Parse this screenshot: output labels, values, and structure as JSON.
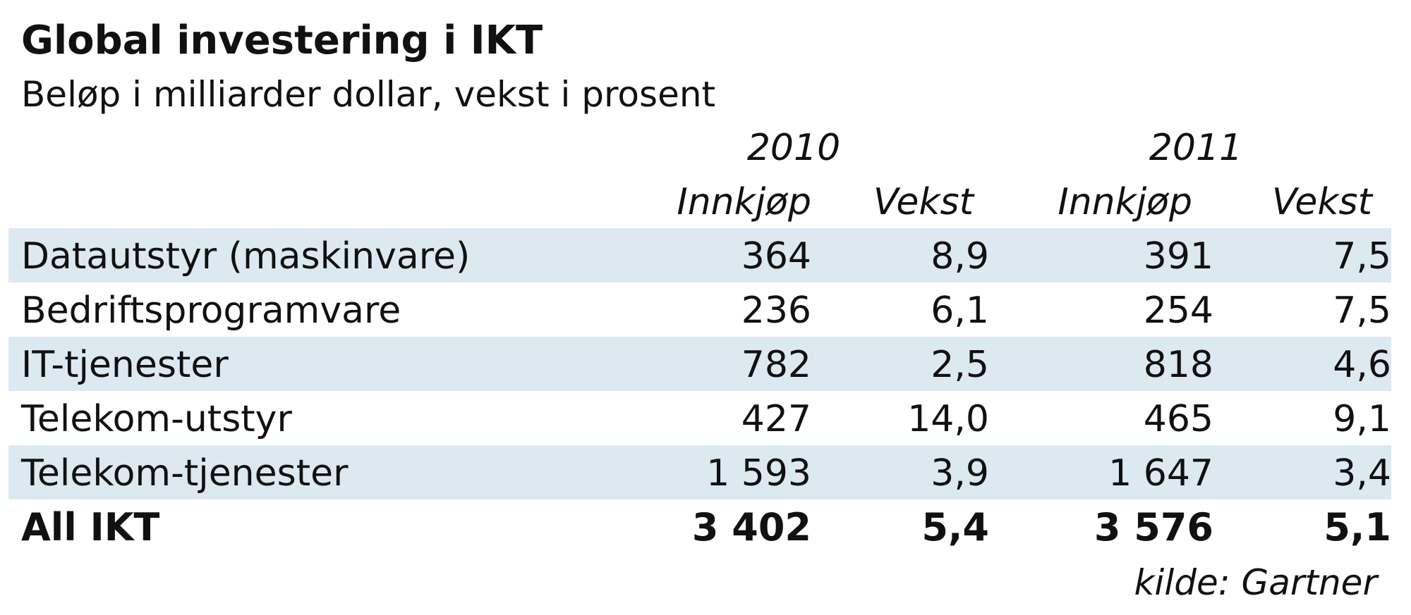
{
  "chart_data": {
    "type": "table",
    "title": "Global investering i IKT",
    "subtitle": "Beløp i milliarder dollar, vekst i prosent",
    "year_headers": [
      "2010",
      "2011"
    ],
    "column_headers": [
      "Innkjøp",
      "Vekst",
      "Innkjøp",
      "Vekst"
    ],
    "rows": [
      {
        "label": "Datautstyr (maskinvare)",
        "values": [
          "364",
          "8,9",
          "391",
          "7,5"
        ]
      },
      {
        "label": "Bedriftsprogramvare",
        "values": [
          "236",
          "6,1",
          "254",
          "7,5"
        ]
      },
      {
        "label": "IT-tjenester",
        "values": [
          "782",
          "2,5",
          "818",
          "4,6"
        ]
      },
      {
        "label": "Telekom-utstyr",
        "values": [
          "427",
          "14,0",
          "465",
          "9,1"
        ]
      },
      {
        "label": "Telekom-tjenester",
        "values": [
          "1 593",
          "3,9",
          "1 647",
          "3,4"
        ]
      }
    ],
    "total": {
      "label": "All IKT",
      "values": [
        "3 402",
        "5,4",
        "3 576",
        "5,1"
      ]
    },
    "source": "kilde: Gartner"
  },
  "colors": {
    "band": "#dce9f1",
    "text": "#111111",
    "background": "#ffffff"
  }
}
